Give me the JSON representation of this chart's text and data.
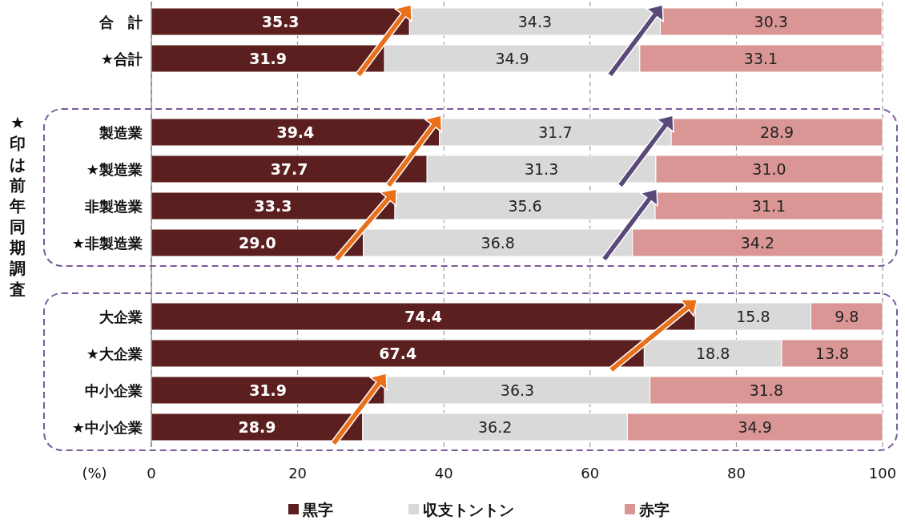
{
  "chart_data": {
    "type": "bar",
    "orientation": "horizontal",
    "stacked": true,
    "categories": [
      "合　計",
      "★合計",
      null,
      "製造業",
      "★製造業",
      "非製造業",
      "★非製造業",
      null,
      "大企業",
      "★大企業",
      "中小企業",
      "★中小企業"
    ],
    "series": [
      {
        "name": "黒字",
        "color": "#5c1f1f",
        "values": [
          35.3,
          31.9,
          null,
          39.4,
          37.7,
          33.3,
          29.0,
          null,
          74.4,
          67.4,
          31.9,
          28.9
        ],
        "value_labels": [
          "35.3",
          "31.9",
          null,
          "39.4",
          "37.7",
          "33.3",
          "29.0",
          null,
          "74.4",
          "67.4",
          "31.9",
          "28.9"
        ]
      },
      {
        "name": "収支トントン",
        "color": "#d9d9d9",
        "values": [
          34.3,
          34.9,
          null,
          31.7,
          31.3,
          35.6,
          36.8,
          null,
          15.8,
          18.8,
          36.3,
          36.2
        ],
        "value_labels": [
          "34.3",
          "34.9",
          null,
          "31.7",
          "31.3",
          "35.6",
          "36.8",
          null,
          "15.8",
          "18.8",
          "36.3",
          "36.2"
        ]
      },
      {
        "name": "赤字",
        "color": "#d99694",
        "values": [
          30.3,
          33.1,
          null,
          28.9,
          31.0,
          31.1,
          34.2,
          null,
          9.8,
          13.8,
          31.8,
          34.9
        ],
        "value_labels": [
          "30.3",
          "33.1",
          null,
          "28.9",
          "31.0",
          "31.1",
          "34.2",
          null,
          "9.8",
          "13.8",
          "31.8",
          "34.9"
        ]
      }
    ],
    "xlim": [
      0,
      100
    ],
    "xticks": [
      0,
      20,
      40,
      60,
      80,
      100
    ],
    "xlabel": "(%)",
    "ylabel": "★印は前年同期調査",
    "grid": "x",
    "legend": "bottom"
  }
}
